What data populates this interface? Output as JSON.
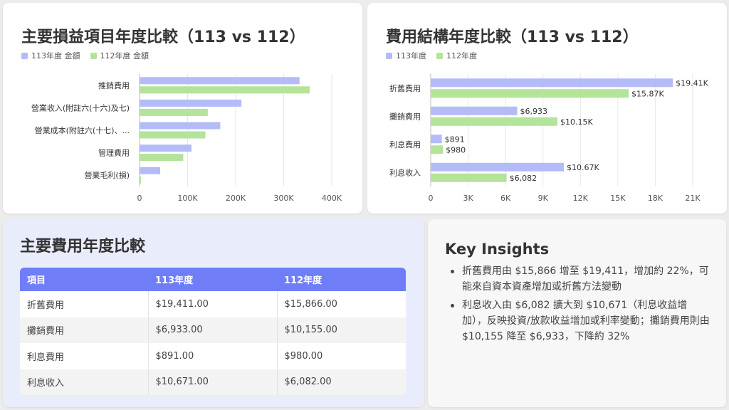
{
  "colors": {
    "series_113": "#b4bcf7",
    "series_112": "#b4e39a",
    "table_header": "#6f7ef7"
  },
  "chart_data": [
    {
      "type": "bar",
      "orientation": "horizontal",
      "title": "主要損益項目年度比較（113 vs 112）",
      "categories": [
        "推銷費用",
        "營業收入(附註六(十六)及七)",
        "營業成本(附註六(十七)、...",
        "管理費用",
        "營業毛利(損)"
      ],
      "series": [
        {
          "name": "113年度 金額",
          "values": [
            333000,
            212000,
            168000,
            108000,
            43000
          ]
        },
        {
          "name": "112年度 金額",
          "values": [
            354000,
            142000,
            137000,
            91000,
            3000
          ]
        }
      ],
      "xlim": [
        0,
        400000
      ],
      "x_ticks": [
        0,
        100000,
        200000,
        300000,
        400000
      ],
      "x_tick_labels": [
        "0",
        "100K",
        "200K",
        "300K",
        "400K"
      ],
      "grid": true,
      "legend_position": "top-left"
    },
    {
      "type": "bar",
      "orientation": "horizontal",
      "title": "費用結構年度比較（113 vs 112）",
      "categories": [
        "折舊費用",
        "攤銷費用",
        "利息費用",
        "利息收入"
      ],
      "series": [
        {
          "name": "113年度",
          "values": [
            19411,
            6933,
            891,
            10671
          ],
          "labels": [
            "$19.41K",
            "$6,933",
            "$891",
            "$10.67K"
          ]
        },
        {
          "name": "112年度",
          "values": [
            15866,
            10155,
            980,
            6082
          ],
          "labels": [
            "$15.87K",
            "$10.15K",
            "$980",
            "$6,082"
          ]
        }
      ],
      "xlim": [
        0,
        21000
      ],
      "x_ticks": [
        0,
        3000,
        6000,
        9000,
        12000,
        15000,
        18000,
        21000
      ],
      "x_tick_labels": [
        "0",
        "3K",
        "6K",
        "9K",
        "12K",
        "15K",
        "18K",
        "21K"
      ],
      "grid": true,
      "legend_position": "top-left"
    }
  ],
  "table": {
    "title": "主要費用年度比較",
    "headers": [
      "項目",
      "113年度",
      "112年度"
    ],
    "rows": [
      [
        "折舊費用",
        "$19,411.00",
        "$15,866.00"
      ],
      [
        "攤銷費用",
        "$6,933.00",
        "$10,155.00"
      ],
      [
        "利息費用",
        "$891.00",
        "$980.00"
      ],
      [
        "利息收入",
        "$10,671.00",
        "$6,082.00"
      ]
    ]
  },
  "insights": {
    "title": "Key Insights",
    "items": [
      "折舊費用由 $15,866 增至 $19,411，增加約 22%，可能來自資本資產增加或折舊方法變動",
      "利息收入由 $6,082 擴大到 $10,671（利息收益增加），反映投資/放款收益增加或利率變動；攤銷費用則由 $10,155 降至 $6,933，下降約 32%"
    ]
  }
}
